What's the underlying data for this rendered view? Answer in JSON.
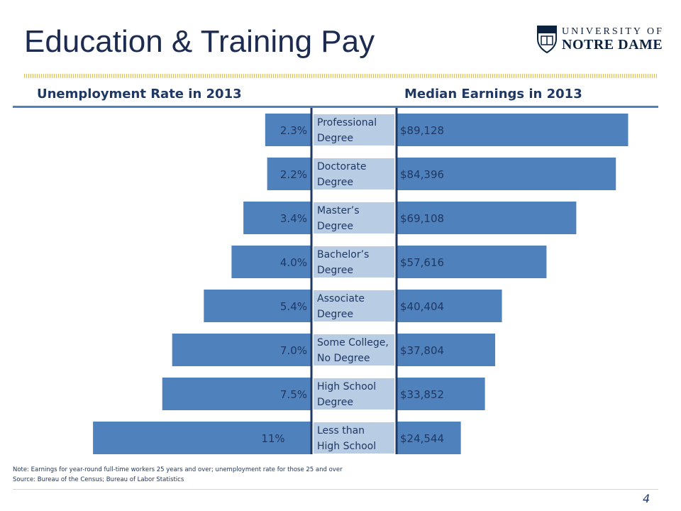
{
  "slide": {
    "title": "Education & Training Pay",
    "logo_line1": "UNIVERSITY OF",
    "logo_line2": "NOTRE DAME",
    "page_number": "4"
  },
  "headers": {
    "left": "Unemployment Rate in 2013",
    "right": "Median Earnings in 2013"
  },
  "colors": {
    "bar": "#4f81bd",
    "label_box": "#b8cce4",
    "text": "#1f3864",
    "title": "#1c2b4f"
  },
  "chart_data": {
    "type": "bar",
    "orientation": "horizontal",
    "layout_style": "back-to-back",
    "categories": [
      [
        "Professional",
        "Degree"
      ],
      [
        "Doctorate",
        "Degree"
      ],
      [
        "Master’s",
        "Degree"
      ],
      [
        "Bachelor’s",
        "Degree"
      ],
      [
        "Associate",
        "Degree"
      ],
      [
        "Some College,",
        "No Degree"
      ],
      [
        "High School",
        "Degree"
      ],
      [
        "Less than",
        "High School"
      ]
    ],
    "series": [
      {
        "name": "Unemployment Rate in 2013",
        "side": "left",
        "values": [
          2.3,
          2.2,
          3.4,
          4.0,
          5.4,
          7.0,
          7.5,
          11
        ],
        "labels": [
          "2.3%",
          "2.2%",
          "3.4%",
          "4.0%",
          "5.4%",
          "7.0%",
          "7.5%",
          "11%"
        ]
      },
      {
        "name": "Median Earnings in 2013",
        "side": "right",
        "values": [
          89128,
          84396,
          69108,
          57616,
          40404,
          37804,
          33852,
          24544
        ],
        "labels": [
          "$89,128",
          "$84,396",
          "$69,108",
          "$57,616",
          "$40,404",
          "$37,804",
          "$33,852",
          "$24,544"
        ]
      }
    ]
  },
  "footnotes": {
    "note": "Note: Earnings for year-round full-time workers 25 years and over; unemployment rate for those 25 and over",
    "source": "Source: Bureau of the Census; Bureau of Labor Statistics"
  }
}
